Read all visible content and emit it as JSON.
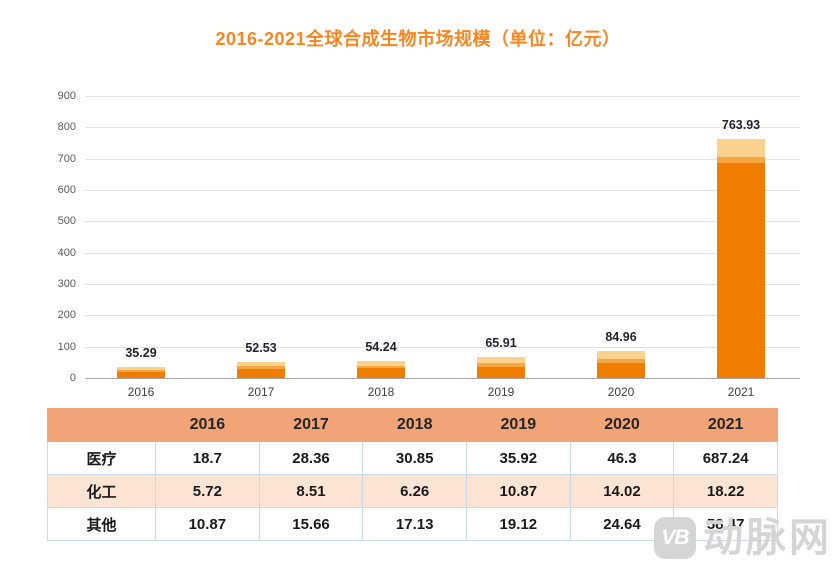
{
  "title": "2016-2021全球合成生物市场规模（单位：亿元）",
  "chart_data": {
    "type": "bar",
    "stacked": true,
    "title": "2016-2021全球合成生物市场规模（单位：亿元）",
    "categories": [
      "2016",
      "2017",
      "2018",
      "2019",
      "2020",
      "2021"
    ],
    "series": [
      {
        "name": "医疗",
        "values": [
          18.7,
          28.36,
          30.85,
          35.92,
          46.3,
          687.24
        ],
        "color": "#EE7D01"
      },
      {
        "name": "化工",
        "values": [
          5.72,
          8.51,
          6.26,
          10.87,
          14.02,
          18.22
        ],
        "color": "#F5A542"
      },
      {
        "name": "其他",
        "values": [
          10.87,
          15.66,
          17.13,
          19.12,
          24.64,
          58.47
        ],
        "color": "#FAD28D"
      }
    ],
    "totals": [
      35.29,
      52.53,
      54.24,
      65.91,
      84.96,
      763.93
    ],
    "total_labels": [
      "35.29",
      "52.53",
      "54.24",
      "65.91",
      "84.96",
      "763.93"
    ],
    "xlabel": "",
    "ylabel": "",
    "ylim": [
      0,
      900
    ],
    "yticks": [
      0,
      100,
      200,
      300,
      400,
      500,
      600,
      700,
      800,
      900
    ],
    "grid": true,
    "legend_position": "none"
  },
  "table": {
    "header": [
      "",
      "2016",
      "2017",
      "2018",
      "2019",
      "2020",
      "2021"
    ],
    "rows": [
      {
        "label": "医疗",
        "values": [
          "18.7",
          "28.36",
          "30.85",
          "35.92",
          "46.3",
          "687.24"
        ]
      },
      {
        "label": "化工",
        "values": [
          "5.72",
          "8.51",
          "6.26",
          "10.87",
          "14.02",
          "18.22"
        ]
      },
      {
        "label": "其他",
        "values": [
          "10.87",
          "15.66",
          "17.13",
          "19.12",
          "24.64",
          "58.47"
        ]
      }
    ]
  },
  "watermark": {
    "logo_text": "VB",
    "site_name": "动脉网"
  },
  "colors": {
    "title": "#F6861F",
    "bar_medical": "#EE7D01",
    "bar_chemical": "#F5A542",
    "bar_other": "#FAD28D",
    "table_header_bg": "#F0A478",
    "table_alt_row_bg": "#FCE4D4",
    "table_border": "#C9DBE8",
    "gridline": "#E3E3E3",
    "axis_line": "#A8A8A8",
    "value_label": "#20242C",
    "watermark": "#D5D5D5"
  }
}
